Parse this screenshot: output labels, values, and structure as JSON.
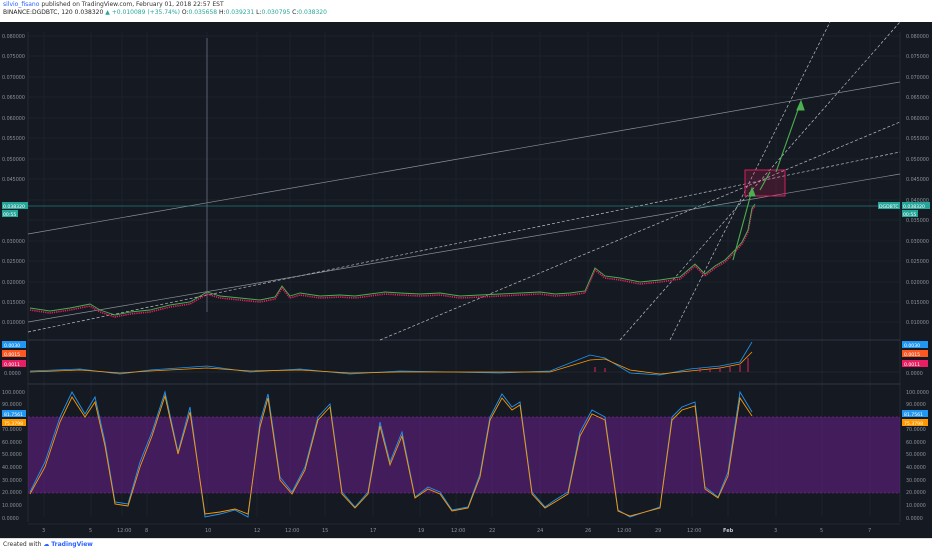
{
  "header": {
    "username": "silvio_fisano",
    "published_text": "published on TradingView.com, February 01, 2018 22:57 EST",
    "symbol": "BINANCE:DGDBTC, 120",
    "last_price": "0.038320",
    "change": "▲ +0.010089 (+35.74%)",
    "open_label": "O:",
    "open": "0.035658",
    "high_label": "H:",
    "high": "0.039231",
    "low_label": "L:",
    "low": "0.030795",
    "close_label": "C:",
    "close": "0.038320"
  },
  "price_axis": {
    "labels": [
      "0.080000",
      "0.075000",
      "0.070000",
      "0.065000",
      "0.060000",
      "0.055000",
      "0.050000",
      "0.045000",
      "0.040000",
      "0.035000",
      "0.030000",
      "0.025000",
      "0.020000",
      "0.015000",
      "0.010000"
    ],
    "current_badge": "0.038320",
    "left_badge_1": "0.038320",
    "left_badge_2": "00:55",
    "right_badge_1": "DGDBTC",
    "right_badge_2": "0.038320",
    "right_badge_3": "00:55"
  },
  "macd_axis": {
    "labels": [
      "0.0030",
      "0.0015",
      "0.0011",
      "0.0000"
    ],
    "badge_blue": "0.0030",
    "badge_orange": "0.0015",
    "badge_red": "0.0011"
  },
  "stoch_axis": {
    "labels": [
      "100.0000",
      "90.0000",
      "80.0000",
      "70.0000",
      "60.0000",
      "50.0000",
      "40.0000",
      "30.0000",
      "20.0000",
      "10.0000",
      "0.0000"
    ],
    "badge_blue": "81.7561",
    "badge_orange": "75.3798"
  },
  "time_axis": [
    "3",
    "5",
    "12:00",
    "8",
    "10",
    "12",
    "12:00",
    "15",
    "17",
    "19",
    "12:00",
    "22",
    "24",
    "26",
    "12:00",
    "29",
    "12:00",
    "Feb",
    "3",
    "5",
    "7"
  ],
  "footer": {
    "created_with": "Created with",
    "brand": "TradingView"
  },
  "colors": {
    "background": "#151a22",
    "grid": "#2a2f3a",
    "candle_up": "#4caf50",
    "candle_down": "#e91e63",
    "macd_line": "#2196f3",
    "signal_line": "#ff9800",
    "stoch_band": "#7b1fa2",
    "box": "#e91e63",
    "arrow": "#4caf50"
  }
}
